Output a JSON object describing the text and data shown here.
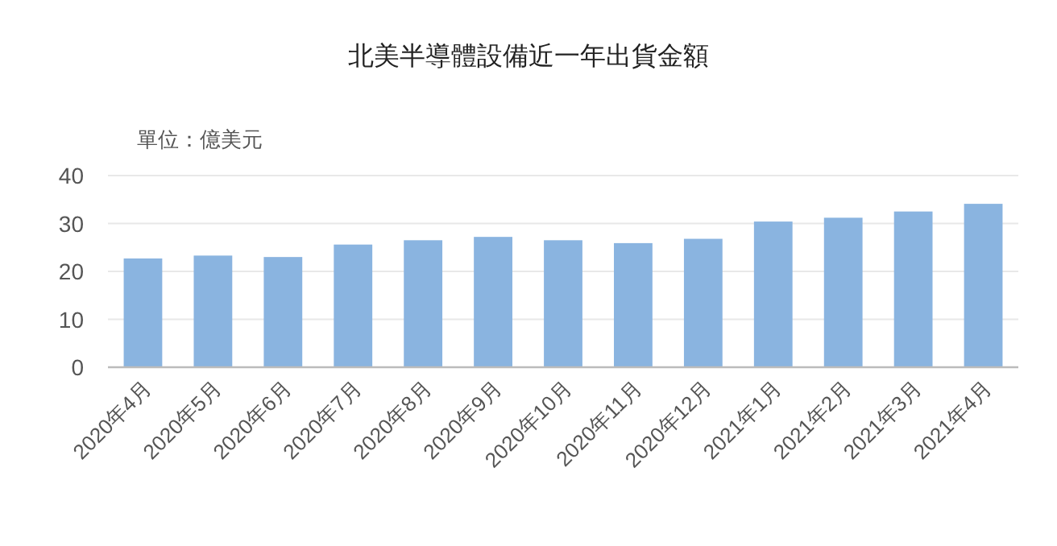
{
  "chart_data": {
    "type": "bar",
    "title": "北美半導體設備近一年出貨金額",
    "ylabel": "單位：億美元",
    "categories": [
      "2020年4月",
      "2020年5月",
      "2020年6月",
      "2020年7月",
      "2020年8月",
      "2020年9月",
      "2020年10月",
      "2020年11月",
      "2020年12月",
      "2021年1月",
      "2021年2月",
      "2021年3月",
      "2021年4月"
    ],
    "values": [
      22.7,
      23.3,
      23.0,
      25.6,
      26.5,
      27.2,
      26.5,
      25.9,
      26.8,
      30.4,
      31.2,
      32.5,
      34.1
    ],
    "color": "#8ab4e0",
    "ylim": [
      0,
      40
    ],
    "yticks": [
      0,
      10,
      20,
      30,
      40
    ],
    "grid": "y"
  }
}
